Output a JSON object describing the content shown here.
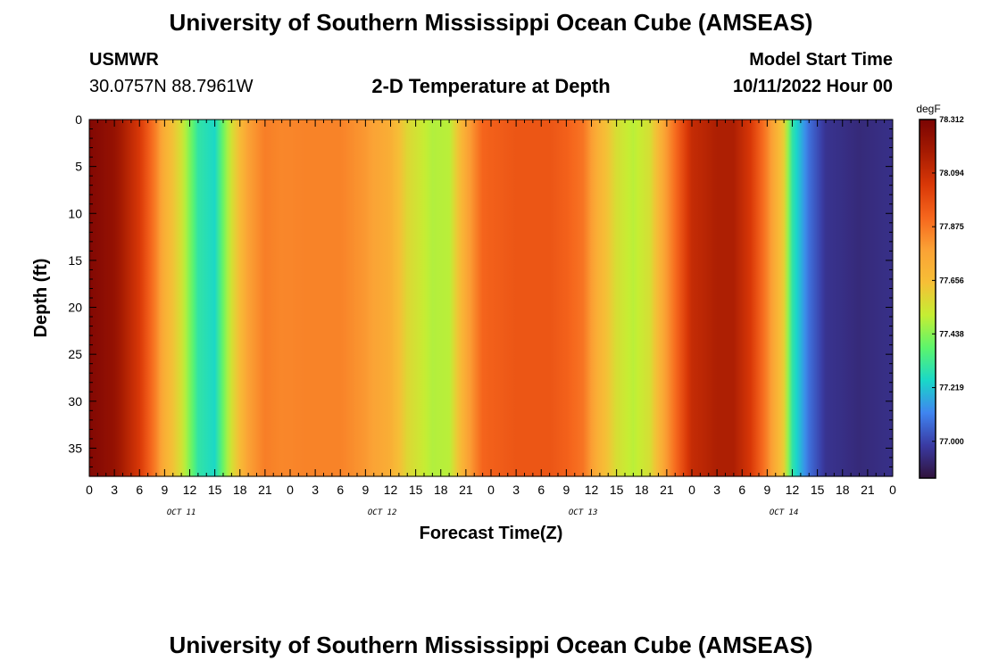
{
  "page": {
    "title": "University of Southern Mississippi Ocean Cube (AMSEAS)",
    "footer_title": "University of Southern Mississippi Ocean Cube (AMSEAS)",
    "station": "USMWR",
    "coords": "30.0757N  88.7961W",
    "subtitle": "2-D Temperature at Depth",
    "model_start_label": "Model Start Time",
    "model_start_value": "10/11/2022 Hour 00"
  },
  "colors": {
    "scale": [
      "#30123b",
      "#3a3aa2",
      "#3f84f0",
      "#1ad8c8",
      "#5cf56c",
      "#c5ee33",
      "#f6bf36",
      "#fba235",
      "#f6661d",
      "#d93807",
      "#a61b02",
      "#7a0403"
    ]
  },
  "chart_data": {
    "type": "heatmap",
    "xlabel": "Forecast Time(Z)",
    "ylabel": "Depth (ft)",
    "x_range": [
      0,
      96
    ],
    "y_range": [
      0,
      38
    ],
    "x_ticks": [
      "0",
      "3",
      "6",
      "9",
      "12",
      "15",
      "18",
      "21",
      "0",
      "3",
      "6",
      "9",
      "12",
      "15",
      "18",
      "21",
      "0",
      "3",
      "6",
      "9",
      "12",
      "15",
      "18",
      "21",
      "0",
      "3",
      "6",
      "9",
      "12",
      "15",
      "18",
      "21",
      "0"
    ],
    "y_ticks": [
      "0",
      "5",
      "10",
      "15",
      "20",
      "25",
      "30",
      "35"
    ],
    "date_labels": [
      {
        "label": "OCT 11",
        "hour": 11
      },
      {
        "label": "OCT 12",
        "hour": 35
      },
      {
        "label": "OCT 13",
        "hour": 59
      },
      {
        "label": "OCT 14",
        "hour": 83
      }
    ],
    "colorbar": {
      "unit": "degF",
      "labels": [
        "78.312",
        "78.094",
        "77.875",
        "77.656",
        "77.438",
        "77.219",
        "77.000"
      ],
      "range": [
        76.85,
        78.312
      ]
    },
    "time_profile_hours": [
      0,
      3,
      6,
      8,
      9,
      11,
      13,
      15,
      17,
      19,
      21,
      23,
      26,
      30,
      33,
      36,
      38,
      41,
      43,
      45,
      47,
      51,
      55,
      57,
      59,
      61,
      63,
      65,
      67,
      69,
      72,
      75,
      77,
      79,
      81,
      83,
      84,
      86,
      88,
      92,
      96
    ],
    "time_profile_degF": [
      78.29,
      78.23,
      78.05,
      77.85,
      77.72,
      77.55,
      77.3,
      77.25,
      77.55,
      77.78,
      77.86,
      77.84,
      77.85,
      77.85,
      77.8,
      77.72,
      77.58,
      77.49,
      77.5,
      77.75,
      77.92,
      77.96,
      77.96,
      77.93,
      77.88,
      77.7,
      77.56,
      77.5,
      77.56,
      77.8,
      78.1,
      78.16,
      78.16,
      78.05,
      77.85,
      77.6,
      77.3,
      77.08,
      76.96,
      76.93,
      76.95
    ]
  }
}
